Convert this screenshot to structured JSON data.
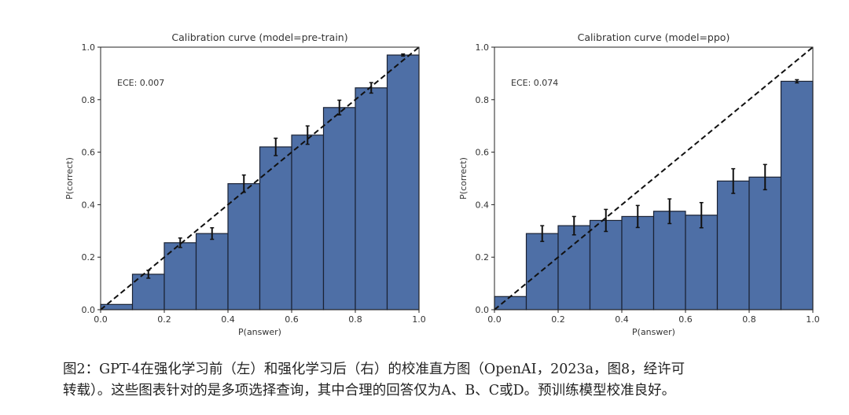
{
  "chart_data": [
    {
      "type": "bar",
      "title": "Calibration curve (model=pre-train)",
      "xlabel": "P(answer)",
      "ylabel": "P(correct)",
      "annotation": "ECE: 0.007",
      "xlim": [
        0,
        1
      ],
      "ylim": [
        0,
        1
      ],
      "xticks": [
        "0.0",
        "0.2",
        "0.4",
        "0.6",
        "0.8",
        "1.0"
      ],
      "yticks": [
        "0.0",
        "0.2",
        "0.4",
        "0.6",
        "0.8",
        "1.0"
      ],
      "bin_edges": [
        0.0,
        0.1,
        0.2,
        0.3,
        0.4,
        0.5,
        0.6,
        0.7,
        0.8,
        0.9,
        1.0
      ],
      "values": [
        0.02,
        0.135,
        0.255,
        0.29,
        0.48,
        0.62,
        0.665,
        0.77,
        0.845,
        0.97
      ],
      "errors": [
        0.0,
        0.015,
        0.018,
        0.022,
        0.033,
        0.033,
        0.035,
        0.028,
        0.02,
        0.004
      ],
      "reference_line": "diagonal dashed y=x",
      "bar_color": "#4e6fa6",
      "grid": false
    },
    {
      "type": "bar",
      "title": "Calibration curve (model=ppo)",
      "xlabel": "P(answer)",
      "ylabel": "P(correct)",
      "annotation": "ECE: 0.074",
      "xlim": [
        0,
        1
      ],
      "ylim": [
        0,
        1
      ],
      "xticks": [
        "0.0",
        "0.2",
        "0.4",
        "0.6",
        "0.8",
        "1.0"
      ],
      "yticks": [
        "0.0",
        "0.2",
        "0.4",
        "0.6",
        "0.8",
        "1.0"
      ],
      "bin_edges": [
        0.0,
        0.1,
        0.2,
        0.3,
        0.4,
        0.5,
        0.6,
        0.7,
        0.8,
        0.9,
        1.0
      ],
      "values": [
        0.05,
        0.29,
        0.32,
        0.34,
        0.355,
        0.375,
        0.36,
        0.49,
        0.505,
        0.87
      ],
      "errors": [
        0.0,
        0.03,
        0.035,
        0.042,
        0.042,
        0.047,
        0.048,
        0.047,
        0.048,
        0.006
      ],
      "reference_line": "diagonal dashed y=x",
      "bar_color": "#4e6fa6",
      "grid": false
    }
  ],
  "caption": {
    "lines": [
      "图2：GPT-4在强化学习前（左）和强化学习后（右）的校准直方图（OpenAI，2023a，图8，经许可",
      "转载）。这些图表针对的是多项选择查询，其中合理的回答仅为A、B、C或D。预训练模型校准良好。"
    ]
  }
}
